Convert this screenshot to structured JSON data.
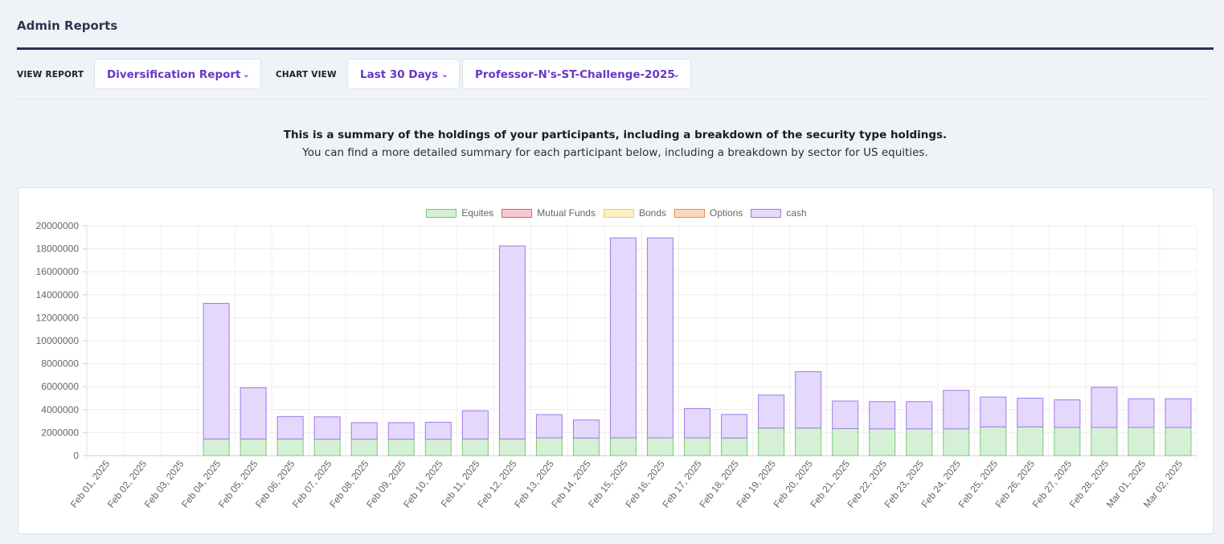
{
  "header": {
    "title": "Admin Reports"
  },
  "toolbar": {
    "view_report_label": "VIEW REPORT",
    "report_select": "Diversification Report",
    "chart_view_label": "CHART VIEW",
    "range_select": "Last 30 Days",
    "challenge_select": "Professor-N's-ST-Challenge-2025"
  },
  "intro": {
    "bold": "This is a summary of the holdings of your participants, including a breakdown of the security type holdings.",
    "sub": "You can find a more detailed summary for each participant below, including a breakdown by sector for US equities."
  },
  "icons": {
    "dropdown": "chevron-down-icon"
  },
  "colors": {
    "accent": "#6a35c9",
    "header_rule": "#2e3253",
    "equities_fill": "#d6f0d6",
    "equities_border": "#79c879",
    "mutual_fill": "#f8c9cf",
    "mutual_border": "#e5596b",
    "bonds_fill": "#fdf0c2",
    "bonds_border": "#f2cf59",
    "options_fill": "#fbd5bf",
    "options_border": "#f08b43",
    "cash_fill": "#e4d8fc",
    "cash_border": "#9f7ae8"
  },
  "chart_data": {
    "type": "bar",
    "stacked": true,
    "categories": [
      "Feb 01, 2025",
      "Feb 02, 2025",
      "Feb 03, 2025",
      "Feb 04, 2025",
      "Feb 05, 2025",
      "Feb 06, 2025",
      "Feb 07, 2025",
      "Feb 08, 2025",
      "Feb 09, 2025",
      "Feb 10, 2025",
      "Feb 11, 2025",
      "Feb 12, 2025",
      "Feb 13, 2025",
      "Feb 14, 2025",
      "Feb 15, 2025",
      "Feb 16, 2025",
      "Feb 17, 2025",
      "Feb 18, 2025",
      "Feb 19, 2025",
      "Feb 20, 2025",
      "Feb 21, 2025",
      "Feb 22, 2025",
      "Feb 23, 2025",
      "Feb 24, 2025",
      "Feb 25, 2025",
      "Feb 26, 2025",
      "Feb 27, 2025",
      "Feb 28, 2025",
      "Mar 01, 2025",
      "Mar 02, 2025"
    ],
    "series": [
      {
        "name": "Equites",
        "values": [
          0,
          0,
          0,
          1450000,
          1450000,
          1450000,
          1420000,
          1420000,
          1420000,
          1420000,
          1450000,
          1450000,
          1550000,
          1530000,
          1550000,
          1550000,
          1550000,
          1530000,
          2400000,
          2400000,
          2350000,
          2330000,
          2330000,
          2330000,
          2500000,
          2500000,
          2450000,
          2450000,
          2450000,
          2450000
        ]
      },
      {
        "name": "Mutual Funds",
        "values": [
          0,
          0,
          0,
          0,
          0,
          0,
          0,
          0,
          0,
          0,
          0,
          0,
          0,
          0,
          0,
          0,
          0,
          0,
          0,
          0,
          0,
          0,
          0,
          0,
          0,
          0,
          0,
          0,
          0,
          0
        ]
      },
      {
        "name": "Bonds",
        "values": [
          0,
          0,
          0,
          0,
          0,
          0,
          0,
          0,
          0,
          0,
          0,
          0,
          0,
          0,
          0,
          0,
          0,
          0,
          0,
          0,
          0,
          0,
          0,
          0,
          0,
          0,
          0,
          0,
          0,
          0
        ]
      },
      {
        "name": "Options",
        "values": [
          0,
          0,
          0,
          0,
          0,
          0,
          0,
          0,
          0,
          0,
          0,
          0,
          0,
          0,
          0,
          0,
          0,
          0,
          0,
          0,
          0,
          0,
          0,
          0,
          0,
          0,
          0,
          0,
          0,
          0
        ]
      },
      {
        "name": "cash",
        "values": [
          0,
          0,
          0,
          11800000,
          4450000,
          1950000,
          1950000,
          1450000,
          1450000,
          1480000,
          2450000,
          16800000,
          2020000,
          1570000,
          17400000,
          17400000,
          2550000,
          2050000,
          2870000,
          4900000,
          2400000,
          2370000,
          2370000,
          3350000,
          2600000,
          2500000,
          2400000,
          3500000,
          2500000,
          2500000
        ]
      }
    ],
    "yticks": [
      0,
      2000000,
      4000000,
      6000000,
      8000000,
      10000000,
      12000000,
      14000000,
      16000000,
      18000000,
      20000000
    ],
    "ylim": [
      0,
      20000000
    ],
    "legend_position": "top-center",
    "grid": true
  }
}
